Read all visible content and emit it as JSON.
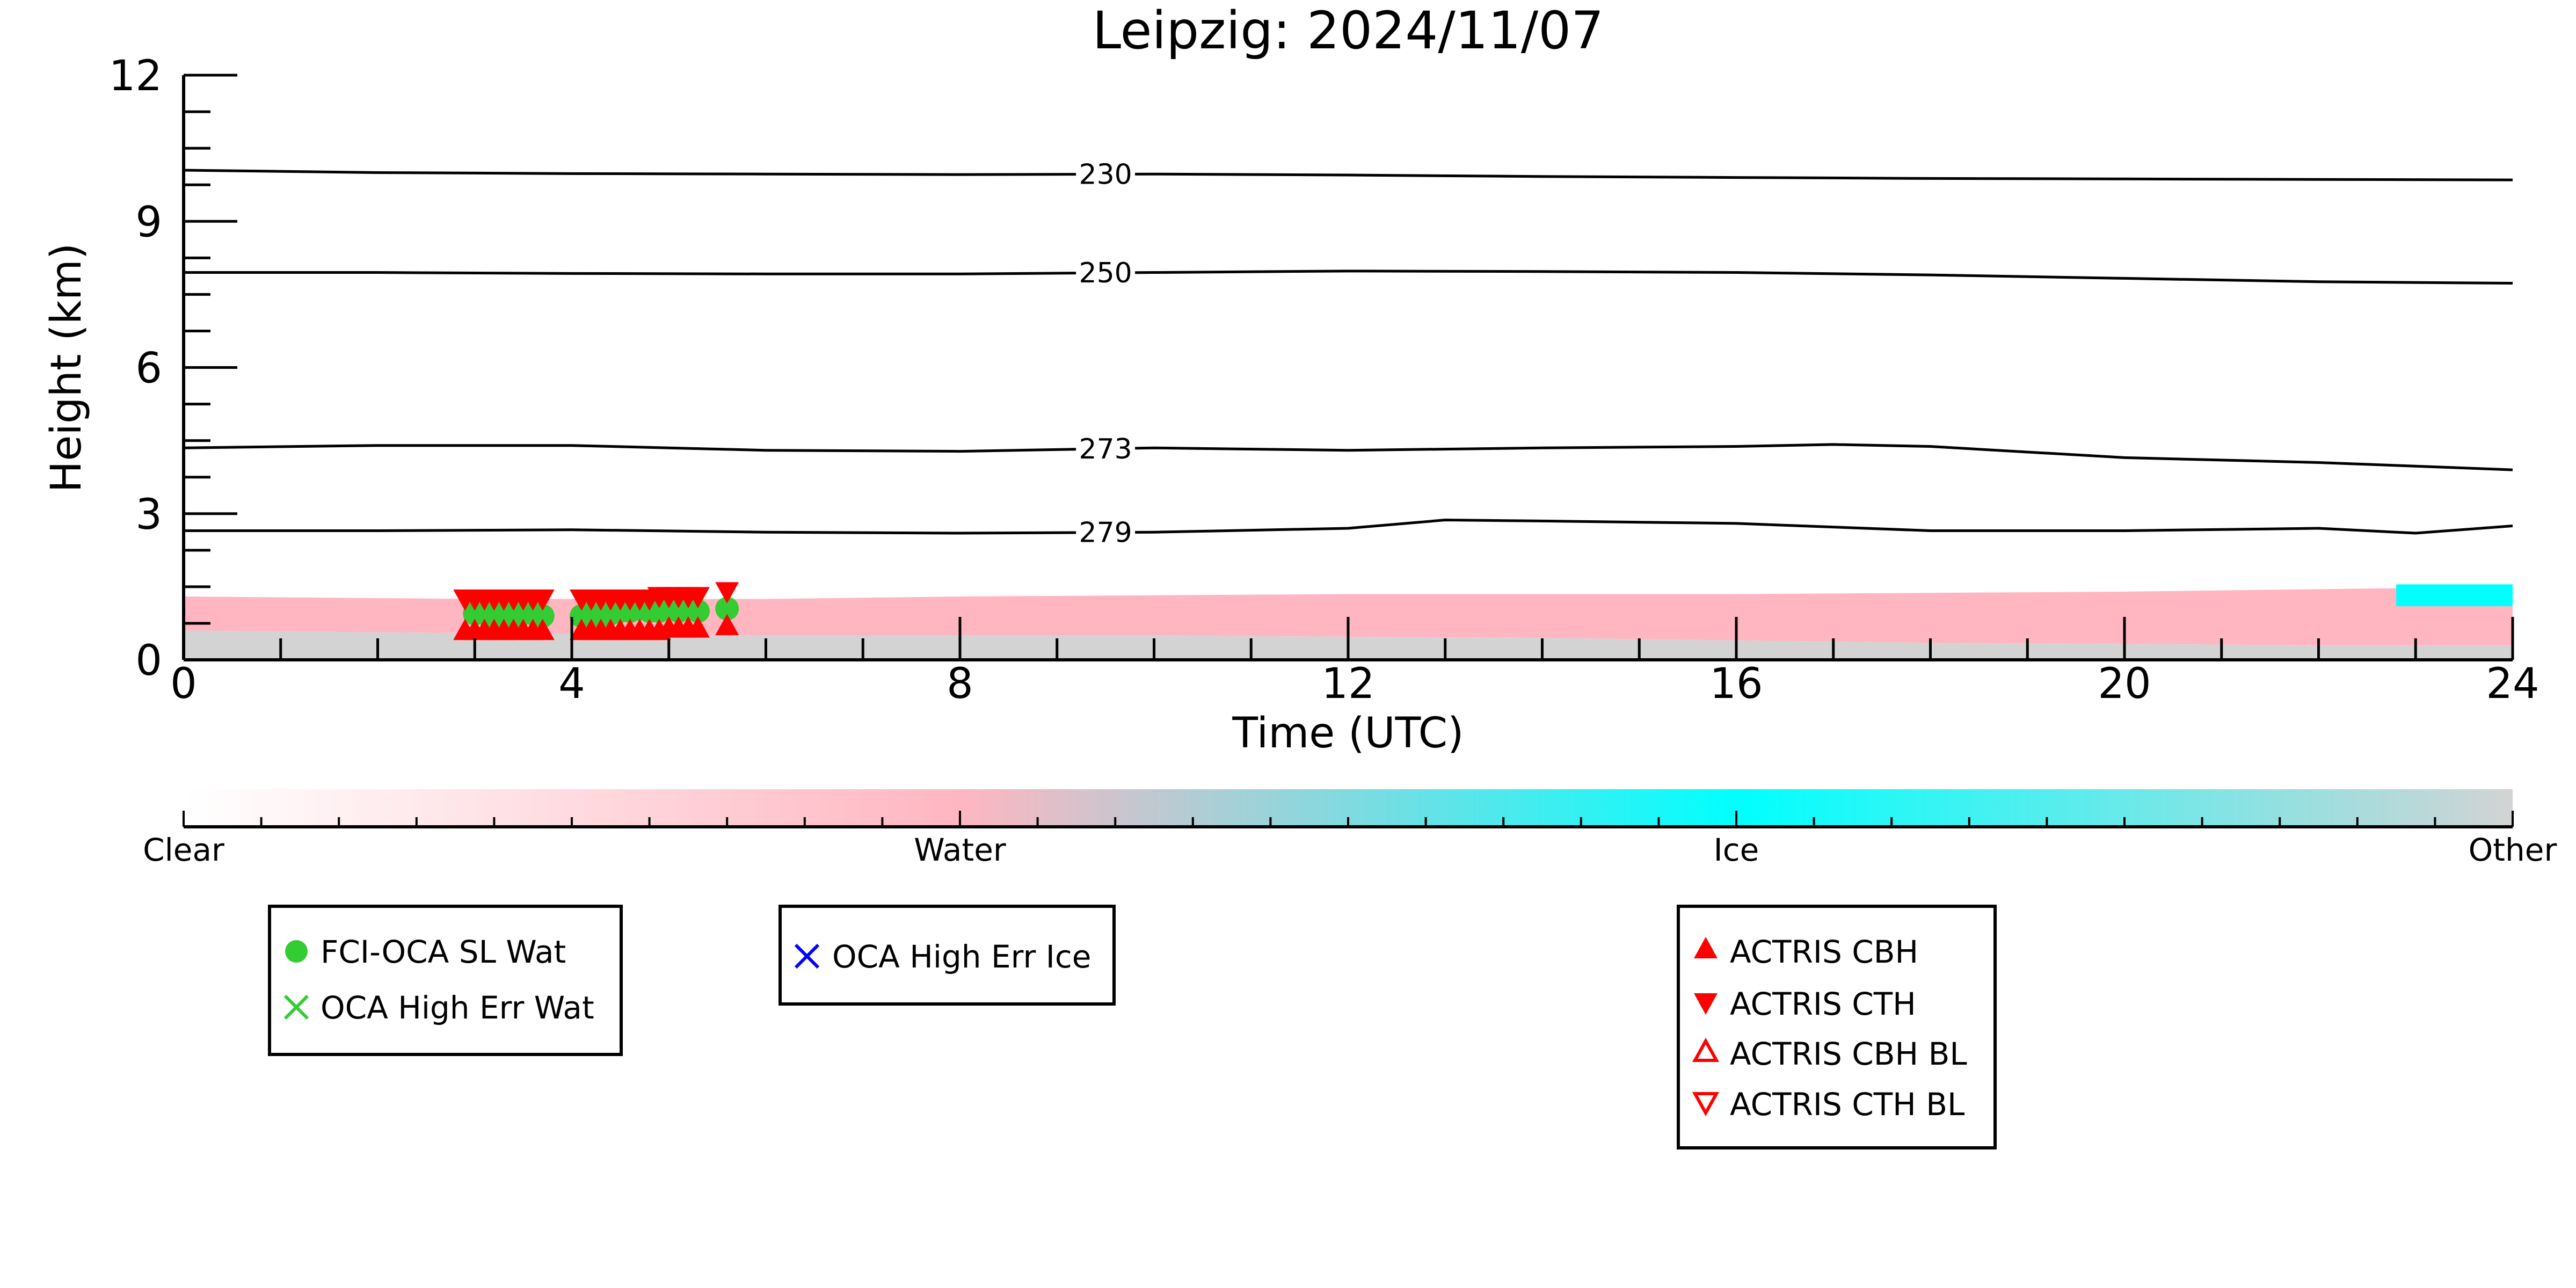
{
  "chart_data": {
    "type": "scatter",
    "title": "Leipzig: 2024/11/07",
    "xlabel": "Time (UTC)",
    "ylabel": "Height (km)",
    "xlim": [
      0,
      24
    ],
    "ylim": [
      0,
      12
    ],
    "xticks": [
      0,
      4,
      8,
      12,
      16,
      20,
      24
    ],
    "yticks": [
      0,
      3,
      6,
      9,
      12
    ],
    "background_layers": [
      {
        "name": "Water",
        "color": "#ffb6c1",
        "points": [
          [
            0,
            0.8
          ],
          [
            0,
            1.3
          ],
          [
            3,
            1.25
          ],
          [
            6,
            1.25
          ],
          [
            8,
            1.3
          ],
          [
            12,
            1.35
          ],
          [
            16,
            1.35
          ],
          [
            20,
            1.4
          ],
          [
            22,
            1.45
          ],
          [
            24,
            1.5
          ],
          [
            24,
            0.3
          ],
          [
            22,
            0.3
          ],
          [
            18,
            0.35
          ],
          [
            14,
            0.45
          ],
          [
            10,
            0.5
          ],
          [
            6,
            0.5
          ],
          [
            3,
            0.55
          ],
          [
            0,
            0.6
          ]
        ]
      },
      {
        "name": "Other",
        "color": "#d3d3d3",
        "points": [
          [
            0,
            0
          ],
          [
            0,
            0.6
          ],
          [
            3,
            0.55
          ],
          [
            6,
            0.5
          ],
          [
            10,
            0.5
          ],
          [
            14,
            0.45
          ],
          [
            18,
            0.35
          ],
          [
            22,
            0.3
          ],
          [
            24,
            0.3
          ],
          [
            24,
            0
          ]
        ]
      },
      {
        "name": "Ice",
        "color": "#00ffff",
        "points": [
          [
            22.8,
            1.1
          ],
          [
            22.8,
            1.55
          ],
          [
            24,
            1.55
          ],
          [
            24,
            1.1
          ]
        ]
      }
    ],
    "contours": [
      {
        "label": "230",
        "x": [
          0,
          2,
          4,
          6,
          8,
          10,
          12,
          14,
          16,
          18,
          20,
          22,
          24
        ],
        "y": [
          10.05,
          10.0,
          9.98,
          9.97,
          9.96,
          9.97,
          9.95,
          9.92,
          9.9,
          9.88,
          9.87,
          9.86,
          9.85
        ]
      },
      {
        "label": "250",
        "x": [
          0,
          2,
          4,
          6,
          8,
          10,
          12,
          14,
          16,
          18,
          20,
          22,
          24
        ],
        "y": [
          7.95,
          7.95,
          7.93,
          7.92,
          7.92,
          7.95,
          7.98,
          7.97,
          7.95,
          7.9,
          7.83,
          7.76,
          7.73
        ]
      },
      {
        "label": "273",
        "x": [
          0,
          2,
          4,
          6,
          8,
          10,
          12,
          14,
          16,
          17,
          18,
          20,
          22,
          24
        ],
        "y": [
          4.35,
          4.4,
          4.4,
          4.3,
          4.28,
          4.35,
          4.3,
          4.35,
          4.38,
          4.42,
          4.38,
          4.15,
          4.05,
          3.9
        ]
      },
      {
        "label": "279",
        "x": [
          0,
          2,
          4,
          6,
          8,
          10,
          12,
          13,
          14,
          16,
          18,
          20,
          22,
          23,
          24
        ],
        "y": [
          2.65,
          2.65,
          2.67,
          2.62,
          2.6,
          2.62,
          2.7,
          2.87,
          2.85,
          2.8,
          2.65,
          2.65,
          2.7,
          2.6,
          2.75
        ]
      }
    ],
    "series": [
      {
        "name": "FCI-OCA SL Wat",
        "marker": "circle",
        "color": "#33cc33",
        "x": [
          3.0,
          3.1,
          3.2,
          3.3,
          3.4,
          3.5,
          3.6,
          3.7,
          4.1,
          4.2,
          4.3,
          4.4,
          4.5,
          4.6,
          4.7,
          4.8,
          4.9,
          5.0,
          5.1,
          5.2,
          5.3,
          5.6
        ],
        "y": [
          0.95,
          0.95,
          0.9,
          0.95,
          0.9,
          0.95,
          0.95,
          0.9,
          0.9,
          0.95,
          0.9,
          0.95,
          1.0,
          1.0,
          1.05,
          1.0,
          1.0,
          1.05,
          1.0,
          1.05,
          1.0,
          1.05
        ]
      },
      {
        "name": "OCA High Err Wat",
        "marker": "x",
        "color": "#33cc33",
        "x": [],
        "y": []
      },
      {
        "name": "OCA High Err Ice",
        "marker": "x",
        "color": "#0000ff",
        "x": [],
        "y": []
      },
      {
        "name": "ACTRIS CBH",
        "marker": "triangle-up",
        "color": "#ff0000",
        "x": [
          2.9,
          3.0,
          3.1,
          3.2,
          3.3,
          3.4,
          3.5,
          3.6,
          3.7,
          4.1,
          4.2,
          4.3,
          4.4,
          4.5,
          4.6,
          4.7,
          4.8,
          4.9,
          5.0,
          5.1,
          5.2,
          5.3,
          5.6
        ],
        "y": [
          0.6,
          0.6,
          0.6,
          0.6,
          0.6,
          0.6,
          0.6,
          0.6,
          0.6,
          0.6,
          0.6,
          0.6,
          0.6,
          0.6,
          0.6,
          0.6,
          0.6,
          0.6,
          0.65,
          0.65,
          0.65,
          0.65,
          0.7
        ]
      },
      {
        "name": "ACTRIS CTH",
        "marker": "triangle-down",
        "color": "#ff0000",
        "x": [
          2.9,
          3.0,
          3.1,
          3.2,
          3.3,
          3.4,
          3.5,
          3.6,
          3.7,
          4.1,
          4.2,
          4.3,
          4.4,
          4.5,
          4.6,
          4.7,
          4.8,
          4.9,
          5.0,
          5.1,
          5.2,
          5.3,
          5.6
        ],
        "y": [
          1.25,
          1.25,
          1.25,
          1.25,
          1.25,
          1.25,
          1.25,
          1.25,
          1.25,
          1.25,
          1.25,
          1.25,
          1.25,
          1.25,
          1.25,
          1.25,
          1.25,
          1.3,
          1.3,
          1.3,
          1.3,
          1.3,
          1.4
        ]
      },
      {
        "name": "ACTRIS CBH BL",
        "marker": "triangle-up-open",
        "color": "#ff0000",
        "x": [],
        "y": []
      },
      {
        "name": "ACTRIS CTH BL",
        "marker": "triangle-down-open",
        "color": "#ff0000",
        "x": [],
        "y": []
      }
    ],
    "colorbar": {
      "labels": [
        "Clear",
        "Water",
        "Ice",
        "Other"
      ],
      "colors": [
        "#ffffff",
        "#ffb6c1",
        "#00ffff",
        "#d3d3d3"
      ]
    },
    "legends": [
      {
        "placement": "bottom-left",
        "entries": [
          "FCI-OCA SL Wat",
          "OCA High Err Wat"
        ]
      },
      {
        "placement": "bottom-center-left",
        "entries": [
          "OCA High Err Ice"
        ]
      },
      {
        "placement": "bottom-right",
        "entries": [
          "ACTRIS CBH",
          "ACTRIS CTH",
          "ACTRIS CBH BL",
          "ACTRIS CTH BL"
        ]
      }
    ],
    "grid": false
  }
}
